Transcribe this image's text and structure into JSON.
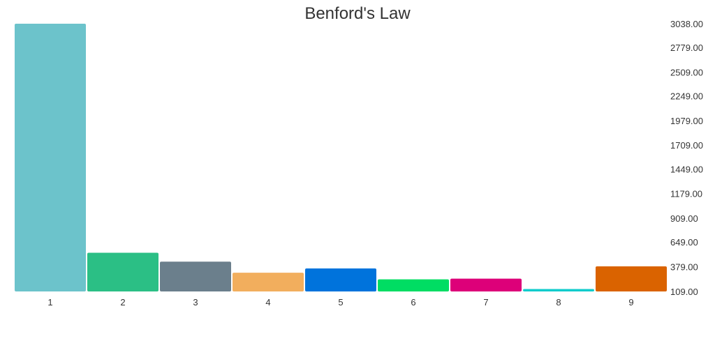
{
  "chart_data": {
    "type": "bar",
    "title": "Benford's Law",
    "categories": [
      "1",
      "2",
      "3",
      "4",
      "5",
      "6",
      "7",
      "8",
      "9"
    ],
    "values": [
      3038,
      532,
      435,
      314,
      361,
      242,
      249,
      136,
      384
    ],
    "colors": [
      "#6cc3cb",
      "#2bbf85",
      "#6b7f8c",
      "#f2ae5d",
      "#0073dc",
      "#00dd63",
      "#dd0079",
      "#11cccc",
      "#da6300"
    ],
    "y_ticks": [
      "3038.00",
      "2779.00",
      "2509.00",
      "2249.00",
      "1979.00",
      "1709.00",
      "1449.00",
      "1179.00",
      "909.00",
      "649.00",
      "379.00",
      "109.00"
    ],
    "y_tick_values": [
      3038,
      2779,
      2509,
      2249,
      1979,
      1709,
      1449,
      1179,
      909,
      649,
      379,
      109
    ],
    "ylim": [
      109,
      3038
    ],
    "y_axis_position": "right",
    "grid": false,
    "legend": "none"
  }
}
